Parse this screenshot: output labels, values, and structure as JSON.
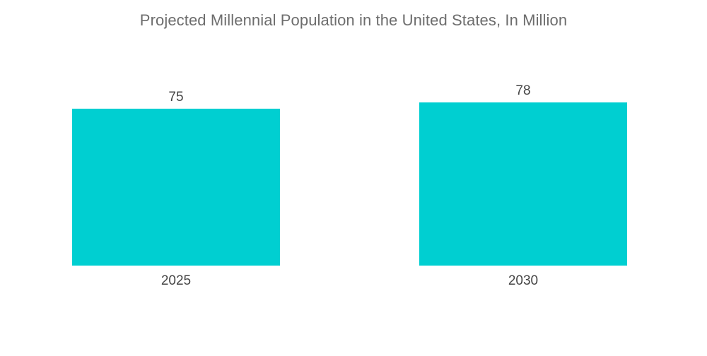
{
  "chart_data": {
    "type": "bar",
    "title": "Projected Millennial Population in the United States, In Million",
    "categories": [
      "2025",
      "2030"
    ],
    "values": [
      75,
      78
    ],
    "xlabel": "",
    "ylabel": "",
    "ylim": [
      0,
      78
    ],
    "grid": false,
    "legend": "none",
    "bar_color": "#00cfd1"
  }
}
